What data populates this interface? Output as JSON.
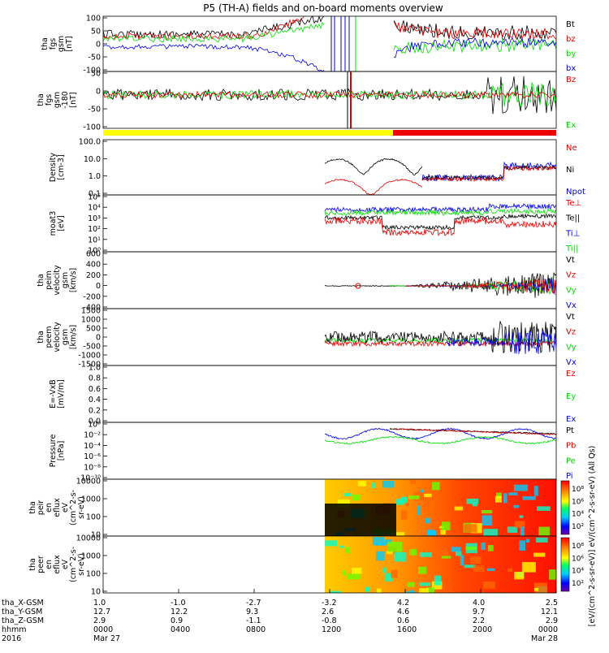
{
  "title": "P5 (TH-A) fields and on-board moments overview",
  "colors": {
    "black": "#000000",
    "red": "#dd0000",
    "green": "#00dd00",
    "blue": "#0000dd",
    "yellow": "#ffff00",
    "redbar": "#ee0000"
  },
  "chart_data": [
    {
      "type": "line",
      "ylabel": [
        "tha",
        "fgs",
        "gsm",
        "[nT]"
      ],
      "ylim": [
        -100,
        100
      ],
      "yticks": [
        "100",
        "50",
        "0",
        "-50",
        "-100"
      ],
      "legend": [
        {
          "label": "Bt",
          "color": "black"
        },
        {
          "label": "bz",
          "color": "red"
        },
        {
          "label": "by",
          "color": "green"
        },
        {
          "label": "bx",
          "color": "blue"
        }
      ]
    },
    {
      "type": "line",
      "ylabel": [
        "tha",
        "fgs",
        "gsm",
        "-180",
        "[nT]"
      ],
      "ylim": [
        -130,
        90
      ],
      "yticks": [
        "50",
        "0",
        "-50",
        "-100"
      ],
      "legend": [
        {
          "label": "Bz",
          "color": "red"
        },
        {
          "label": "Ex",
          "color": "green"
        }
      ]
    },
    {
      "type": "line",
      "ylabel": [
        "Density",
        "[cm-3]"
      ],
      "ylim": [
        0.05,
        150
      ],
      "yticks": [
        "100.0",
        "10.0",
        "1.0",
        "0.1"
      ],
      "legend": [
        {
          "label": "Ne",
          "color": "red"
        },
        {
          "label": "Ni",
          "color": "black"
        },
        {
          "label": "Npot",
          "color": "blue"
        }
      ]
    },
    {
      "type": "line",
      "ylabel": [
        "moat3",
        "[eV]"
      ],
      "yticks": [
        "10⁵",
        "10⁴",
        "10³",
        "10²",
        "10¹",
        "10⁰"
      ],
      "legend": [
        {
          "label": "Te⊥",
          "color": "red"
        },
        {
          "label": "Te||",
          "color": "black"
        },
        {
          "label": "Ti⊥",
          "color": "blue"
        },
        {
          "label": "Ti||",
          "color": "green"
        }
      ]
    },
    {
      "type": "line",
      "ylabel": [
        "tha",
        "peim",
        "velocity",
        "gsm",
        "[km/s]"
      ],
      "ylim": [
        -400,
        600
      ],
      "yticks": [
        "600",
        "400",
        "200",
        "0",
        "-200",
        "-400"
      ],
      "legend": [
        {
          "label": "Vt",
          "color": "black"
        },
        {
          "label": "Vz",
          "color": "red"
        },
        {
          "label": "Vy",
          "color": "green"
        },
        {
          "label": "Vx",
          "color": "blue"
        }
      ]
    },
    {
      "type": "line",
      "ylabel": [
        "tha",
        "peem",
        "velocity",
        "gsm",
        "[km/s]"
      ],
      "ylim": [
        -1500,
        1500
      ],
      "yticks": [
        "1500",
        "1000",
        "500",
        "0",
        "-500",
        "-1000",
        "-1500"
      ],
      "legend": [
        {
          "label": "Vt",
          "color": "black"
        },
        {
          "label": "Vz",
          "color": "red"
        },
        {
          "label": "Vy",
          "color": "green"
        },
        {
          "label": "Vx",
          "color": "blue"
        }
      ]
    },
    {
      "type": "line",
      "ylabel": [
        "E=-VxB",
        "[mV/m]"
      ],
      "ylim": [
        0,
        1
      ],
      "yticks": [
        "1.0",
        "0.8",
        "0.6",
        "0.4",
        "0.2",
        "0.0"
      ],
      "legend": [
        {
          "label": "Ez",
          "color": "red"
        },
        {
          "label": "Ey",
          "color": "green"
        },
        {
          "label": "Ex",
          "color": "blue"
        }
      ]
    },
    {
      "type": "line",
      "ylabel": [
        "Pressure",
        "[nPa]"
      ],
      "yticks": [
        "10⁰",
        "10⁻²",
        "10⁻⁴",
        "10⁻⁶",
        "10⁻⁸",
        "10⁻¹⁰"
      ],
      "legend": [
        {
          "label": "Pt",
          "color": "black"
        },
        {
          "label": "Pb",
          "color": "red"
        },
        {
          "label": "Pe",
          "color": "green"
        },
        {
          "label": "Pi",
          "color": "blue"
        }
      ]
    },
    {
      "type": "heatmap",
      "ylabel": [
        "tha",
        "peir",
        "en",
        "eflux",
        "eV",
        "(cm^2-s-",
        "sr-eV)"
      ],
      "yticks": [
        "10000",
        "1000",
        "100",
        "10"
      ],
      "colorbar_ticks": [
        "10⁸",
        "10⁶",
        "10⁴",
        "10²"
      ]
    },
    {
      "type": "heatmap",
      "ylabel": [
        "tha",
        "peer",
        "en",
        "eflux",
        "eV",
        "(cm^2-s-",
        "sr-eV)"
      ],
      "yticks": [
        "10000",
        "1000",
        "100",
        "10"
      ],
      "colorbar_ticks": [
        "10⁸",
        "10⁶",
        "10⁴",
        "10²"
      ]
    }
  ],
  "colorbar_label": "[eV/(cm^2-s-sr-eV)] eV/(cm^2-s-sr-eV) (All Qs)",
  "xaxis": {
    "row_labels": [
      "tha_X-GSM",
      "tha_Y-GSM",
      "tha_Z-GSM",
      "hhmm",
      "2016"
    ],
    "ticks": [
      {
        "x": [
          "1.0",
          "12.7",
          "2.9"
        ],
        "time": "0000",
        "date": "Mar 27"
      },
      {
        "x": [
          "-1.0",
          "12.2",
          "0.9"
        ],
        "time": "0400",
        "date": ""
      },
      {
        "x": [
          "-2.7",
          "9.3",
          "-1.1"
        ],
        "time": "0800",
        "date": ""
      },
      {
        "x": [
          "-3.2",
          "2.6",
          "-0.8"
        ],
        "time": "1200",
        "date": ""
      },
      {
        "x": [
          "4.2",
          "4.6",
          "0.6"
        ],
        "time": "1600",
        "date": ""
      },
      {
        "x": [
          "4.0",
          "9.7",
          "2.2"
        ],
        "time": "2000",
        "date": ""
      },
      {
        "x": [
          "2.5",
          "12.1",
          "2.9"
        ],
        "time": "0000",
        "date": "Mar 28"
      }
    ]
  }
}
